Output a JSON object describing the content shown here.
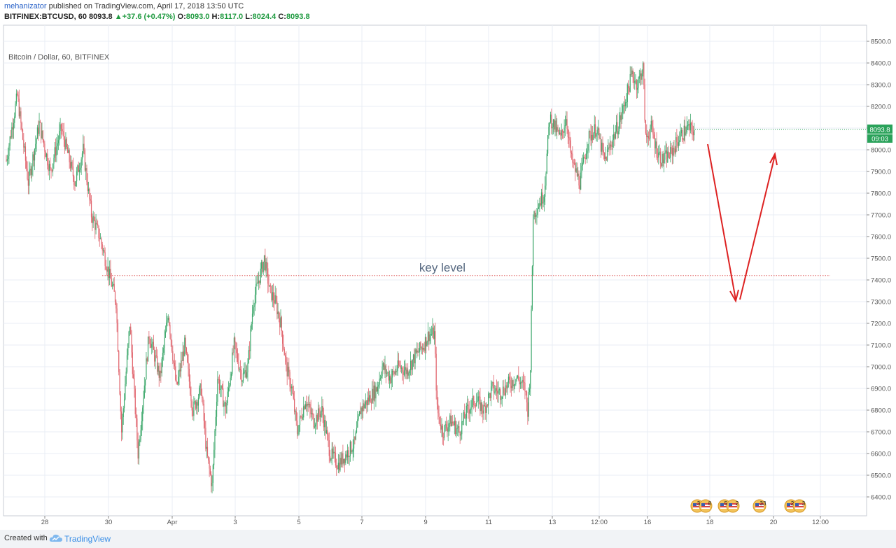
{
  "header": {
    "author": "mehanizator",
    "published": "published on TradingView.com, April 17, 2018 13:50 UTC",
    "symbol": "BITFINEX:BTCUSD, 60",
    "last": "8093.8",
    "change": "+37.6 (+0.47%)",
    "o_label": "O:",
    "o_value": "8093.0",
    "h_label": "H:",
    "h_value": "8117.0",
    "l_label": "L:",
    "l_value": "8024.4",
    "c_label": "C:",
    "c_value": "8093.8"
  },
  "footer": {
    "created": "Created with",
    "brand": "TradingView"
  },
  "colors": {
    "up": "#3ea86c",
    "down": "#e0636c",
    "grid": "#e9eef4",
    "axis": "#555555",
    "key_line": "#e06060",
    "arrow": "#dd2222",
    "price_tag": "#2aa25a"
  },
  "chart_data": {
    "type": "candlestick",
    "title": "Bitcoin / Dollar, 60, BITFINEX",
    "ylim": [
      6330,
      8560
    ],
    "y_ticks": [
      "8500.0",
      "8400.0",
      "8300.0",
      "8200.0",
      "8100.0",
      "8000.0",
      "7900.0",
      "7800.0",
      "7700.0",
      "7600.0",
      "7500.0",
      "7400.0",
      "7300.0",
      "7200.0",
      "7100.0",
      "7000.0",
      "6900.0",
      "6800.0",
      "6700.0",
      "6600.0",
      "6500.0",
      "6400.0"
    ],
    "x_ticks": [
      "28",
      "30",
      "Apr",
      "3",
      "5",
      "7",
      "9",
      "11",
      "13",
      "12:00",
      "16",
      "18",
      "20",
      "12:00"
    ],
    "last_price_label": "8093.8",
    "countdown_label": "09:03",
    "key_level": {
      "label": "key level",
      "value": 7420
    },
    "price_path": [
      [
        0,
        7950
      ],
      [
        4,
        8250
      ],
      [
        8,
        7850
      ],
      [
        12,
        8120
      ],
      [
        16,
        7900
      ],
      [
        20,
        8100
      ],
      [
        25,
        7850
      ],
      [
        28,
        8000
      ],
      [
        31,
        7700
      ],
      [
        34,
        7600
      ],
      [
        37,
        7450
      ],
      [
        40,
        7300
      ],
      [
        42,
        6700
      ],
      [
        45,
        7200
      ],
      [
        48,
        6600
      ],
      [
        52,
        7150
      ],
      [
        56,
        6950
      ],
      [
        59,
        7250
      ],
      [
        62,
        6900
      ],
      [
        65,
        7100
      ],
      [
        68,
        6800
      ],
      [
        71,
        6900
      ],
      [
        73,
        6600
      ],
      [
        75,
        6450
      ],
      [
        77,
        6950
      ],
      [
        80,
        6800
      ],
      [
        83,
        7100
      ],
      [
        86,
        6950
      ],
      [
        88,
        7000
      ],
      [
        90,
        7300
      ],
      [
        92,
        7400
      ],
      [
        94,
        7500
      ],
      [
        96,
        7350
      ],
      [
        98,
        7300
      ],
      [
        100,
        7200
      ],
      [
        102,
        7000
      ],
      [
        104,
        6900
      ],
      [
        106,
        6700
      ],
      [
        109,
        6850
      ],
      [
        112,
        6750
      ],
      [
        115,
        6800
      ],
      [
        118,
        6600
      ],
      [
        121,
        6550
      ],
      [
        124,
        6600
      ],
      [
        127,
        6650
      ],
      [
        129,
        6800
      ],
      [
        132,
        6850
      ],
      [
        135,
        6900
      ],
      [
        137,
        7000
      ],
      [
        140,
        6950
      ],
      [
        143,
        7000
      ],
      [
        146,
        6980
      ],
      [
        149,
        7050
      ],
      [
        152,
        7100
      ],
      [
        154,
        7150
      ],
      [
        156,
        7150
      ],
      [
        157,
        6800
      ],
      [
        159,
        6700
      ],
      [
        162,
        6750
      ],
      [
        165,
        6700
      ],
      [
        168,
        6800
      ],
      [
        171,
        6850
      ],
      [
        174,
        6800
      ],
      [
        177,
        6900
      ],
      [
        180,
        6880
      ],
      [
        183,
        6920
      ],
      [
        186,
        6950
      ],
      [
        189,
        6900
      ],
      [
        190,
        6800
      ],
      [
        191,
        7000
      ],
      [
        192,
        7700
      ],
      [
        194,
        7750
      ],
      [
        196,
        7800
      ],
      [
        198,
        8150
      ],
      [
        200,
        8100
      ],
      [
        202,
        8050
      ],
      [
        204,
        8150
      ],
      [
        206,
        7950
      ],
      [
        209,
        7850
      ],
      [
        212,
        8050
      ],
      [
        215,
        8100
      ],
      [
        218,
        7950
      ],
      [
        221,
        8050
      ],
      [
        224,
        8150
      ],
      [
        226,
        8250
      ],
      [
        228,
        8350
      ],
      [
        230,
        8300
      ],
      [
        232,
        8380
      ],
      [
        233,
        8050
      ],
      [
        235,
        8100
      ],
      [
        237,
        8000
      ],
      [
        239,
        7950
      ],
      [
        242,
        7980
      ],
      [
        245,
        8050
      ],
      [
        248,
        8100
      ],
      [
        250,
        8090
      ]
    ],
    "event_badges": [
      {
        "left": "3",
        "right": "8"
      },
      {
        "left": "5",
        "right": "2"
      },
      {
        "left": "",
        "right": "33"
      },
      {
        "left": "2",
        "right": "3"
      }
    ]
  }
}
